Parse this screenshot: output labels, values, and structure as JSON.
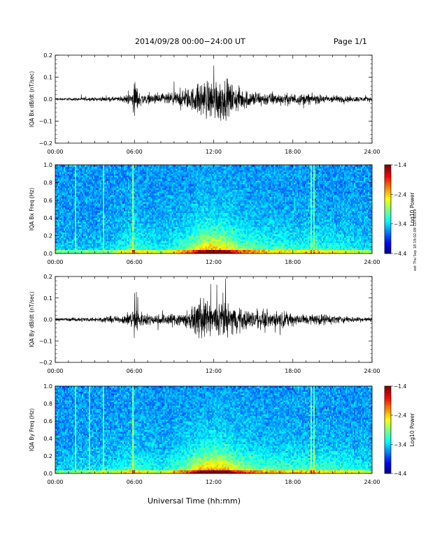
{
  "header": {
    "title": "2014/09/28  00:00−24:00 UT",
    "page": "Page 1/1"
  },
  "footer": {
    "xlabel": "Universal Time (hh:mm)",
    "stamp": "eet Thu Sep 18 19:02:09 CDT 2019"
  },
  "chart_data": [
    {
      "type": "line",
      "ylabel": "IQA Bx dB/dt (nT/sec)",
      "ylim": [
        -0.2,
        0.2
      ],
      "yticks": [
        "0.2",
        "0.1",
        "0.0",
        "−0.1",
        "−0.2"
      ],
      "ytick_values": [
        0.2,
        0.1,
        0.0,
        -0.1,
        -0.2
      ],
      "xlim": [
        "00:00",
        "24:00"
      ],
      "xticks": [
        "00:00",
        "06:00",
        "12:00",
        "18:00",
        "24:00"
      ],
      "series": [
        {
          "x_hours": [
            0,
            1,
            2,
            3,
            4,
            5,
            5.8,
            6.0,
            6.3,
            7,
            8,
            9,
            10,
            10.5,
            11,
            11.5,
            12,
            12.5,
            13,
            13.5,
            14,
            15,
            16,
            17,
            18,
            19,
            20,
            21,
            22,
            23,
            24
          ],
          "amplitude": [
            0.012,
            0.012,
            0.015,
            0.015,
            0.02,
            0.02,
            0.06,
            0.19,
            0.07,
            0.04,
            0.05,
            0.06,
            0.09,
            0.11,
            0.16,
            0.17,
            0.19,
            0.2,
            0.16,
            0.13,
            0.1,
            0.07,
            0.06,
            0.05,
            0.05,
            0.05,
            0.04,
            0.035,
            0.03,
            0.025,
            0.02
          ]
        }
      ]
    },
    {
      "type": "heatmap",
      "ylabel": "IQA Bx Freq (Hz)",
      "ylim": [
        0.0,
        1.0
      ],
      "yticks": [
        "1.0",
        "0.8",
        "0.6",
        "0.4",
        "0.2",
        "0.0"
      ],
      "ytick_values": [
        1.0,
        0.8,
        0.6,
        0.4,
        0.2,
        0.0
      ],
      "xlim": [
        "00:00",
        "24:00"
      ],
      "xticks": [
        "00:00",
        "06:00",
        "12:00",
        "18:00",
        "24:00"
      ],
      "colorbar": {
        "label": "Log10 Power",
        "ticks": [
          "−1.4",
          "−2.4",
          "−3.4",
          "−4.4"
        ],
        "range": [
          -4.4,
          -1.4
        ]
      },
      "activity_hours": [
        0,
        2,
        4,
        6,
        8,
        10,
        11,
        12,
        13,
        14,
        16,
        18,
        20,
        22,
        24
      ],
      "activity": [
        0.1,
        0.1,
        0.12,
        0.35,
        0.2,
        0.45,
        0.75,
        0.85,
        0.75,
        0.5,
        0.35,
        0.3,
        0.3,
        0.25,
        0.15
      ],
      "vertical_lines_hours": [
        1.5,
        3.7,
        5.9,
        19.4,
        19.6
      ]
    },
    {
      "type": "line",
      "ylabel": "IQA By dB/dt (nT/sec)",
      "ylim": [
        -0.2,
        0.2
      ],
      "yticks": [
        "0.2",
        "0.1",
        "0.0",
        "−0.1",
        "−0.2"
      ],
      "ytick_values": [
        0.2,
        0.1,
        0.0,
        -0.1,
        -0.2
      ],
      "xlim": [
        "00:00",
        "24:00"
      ],
      "xticks": [
        "00:00",
        "06:00",
        "12:00",
        "18:00",
        "24:00"
      ],
      "series": [
        {
          "x_hours": [
            0,
            1,
            2,
            3,
            4,
            5,
            5.8,
            6.0,
            6.3,
            7,
            8,
            9,
            10,
            10.5,
            11,
            11.5,
            12,
            12.5,
            13,
            13.5,
            14,
            15,
            16,
            17,
            18,
            19,
            20,
            21,
            22,
            23,
            24
          ],
          "amplitude": [
            0.015,
            0.015,
            0.02,
            0.02,
            0.03,
            0.03,
            0.08,
            0.2,
            0.08,
            0.05,
            0.05,
            0.06,
            0.08,
            0.1,
            0.2,
            0.16,
            0.12,
            0.2,
            0.14,
            0.12,
            0.1,
            0.08,
            0.08,
            0.07,
            0.06,
            0.05,
            0.05,
            0.04,
            0.03,
            0.025,
            0.02
          ]
        }
      ]
    },
    {
      "type": "heatmap",
      "ylabel": "IQA By Freq (Hz)",
      "ylim": [
        0.0,
        1.0
      ],
      "yticks": [
        "1.0",
        "0.8",
        "0.6",
        "0.4",
        "0.2",
        "0.0"
      ],
      "ytick_values": [
        1.0,
        0.8,
        0.6,
        0.4,
        0.2,
        0.0
      ],
      "xlim": [
        "00:00",
        "24:00"
      ],
      "xticks": [
        "00:00",
        "06:00",
        "12:00",
        "18:00",
        "24:00"
      ],
      "colorbar": {
        "label": "Log10 Power",
        "ticks": [
          "−1.4",
          "−2.4",
          "−3.4",
          "−4.4"
        ],
        "range": [
          -4.4,
          -1.4
        ]
      },
      "activity_hours": [
        0,
        2,
        4,
        6,
        8,
        10,
        11,
        12,
        13,
        14,
        16,
        18,
        20,
        22,
        24
      ],
      "activity": [
        0.12,
        0.15,
        0.18,
        0.35,
        0.2,
        0.5,
        0.8,
        0.9,
        0.8,
        0.55,
        0.4,
        0.35,
        0.35,
        0.3,
        0.2
      ],
      "vertical_lines_hours": [
        1.5,
        2.6,
        3.7,
        5.9,
        19.4,
        19.6
      ]
    }
  ]
}
